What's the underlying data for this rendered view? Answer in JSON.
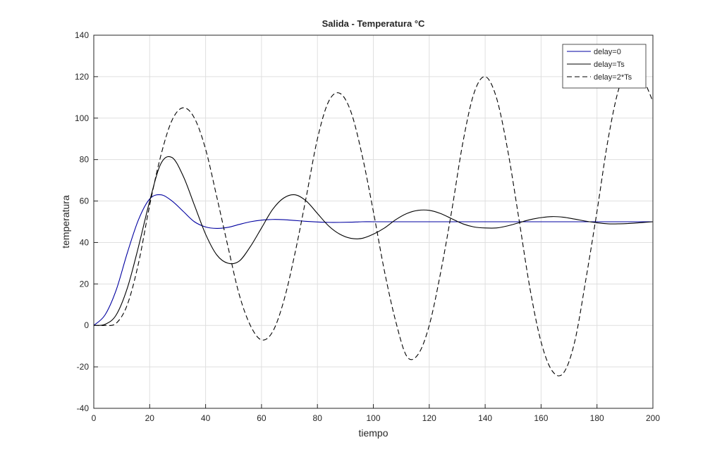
{
  "chart_data": {
    "type": "line",
    "title": "Salida - Temperatura °C",
    "x_label": "tiempo",
    "y_label": "temperatura",
    "x": [
      0,
      4,
      8,
      12,
      16,
      20,
      24,
      28,
      32,
      36,
      40,
      44,
      48,
      52,
      56,
      60,
      64,
      68,
      72,
      76,
      80,
      84,
      88,
      92,
      96,
      100,
      104,
      108,
      112,
      116,
      120,
      124,
      128,
      132,
      136,
      140,
      144,
      148,
      152,
      156,
      160,
      164,
      168,
      172,
      176,
      180,
      184,
      188,
      192,
      196,
      200
    ],
    "series": [
      {
        "name": "delay=0",
        "color": "#0000a0",
        "line_style": "solid",
        "values": [
          0,
          5,
          17,
          35,
          51,
          61,
          63,
          60,
          55,
          50,
          47.5,
          46.8,
          47.3,
          48.7,
          50,
          50.8,
          51.1,
          51,
          50.6,
          50.2,
          49.9,
          49.7,
          49.7,
          49.8,
          50,
          50,
          50,
          50,
          50,
          50,
          50,
          50,
          50,
          50,
          50,
          50,
          50,
          50,
          50,
          50,
          50,
          50,
          50,
          50,
          50,
          50,
          50,
          50,
          50,
          50,
          50
        ]
      },
      {
        "name": "delay=Ts",
        "color": "#000000",
        "line_style": "solid",
        "values": [
          0,
          0.5,
          5,
          18,
          38,
          60,
          78,
          81,
          72,
          58,
          44,
          34,
          30,
          31,
          38,
          47,
          56,
          61.5,
          63,
          60,
          54,
          48,
          44,
          42,
          42,
          44,
          47,
          51,
          54,
          55.5,
          55.5,
          54,
          51.5,
          49,
          47.5,
          47,
          47,
          48,
          49.5,
          51,
          52,
          52.5,
          52.2,
          51.3,
          50.3,
          49.5,
          49,
          49,
          49.2,
          49.6,
          50
        ]
      },
      {
        "name": "delay=2*Ts",
        "color": "#000000",
        "line_style": "dashed",
        "values": [
          0,
          0,
          1,
          10,
          30,
          58,
          82,
          99,
          105,
          100,
          85,
          62,
          38,
          15,
          0,
          -7,
          -3,
          12,
          35,
          62,
          90,
          108,
          112,
          103,
          82,
          55,
          26,
          2,
          -15,
          -14,
          0,
          25,
          55,
          88,
          112,
          120,
          110,
          85,
          52,
          18,
          -8,
          -22,
          -23,
          -8,
          22,
          55,
          90,
          115,
          124,
          120,
          108
        ]
      }
    ],
    "xlim": [
      0,
      200
    ],
    "ylim": [
      -40,
      140
    ],
    "xticks": [
      0,
      20,
      40,
      60,
      80,
      100,
      120,
      140,
      160,
      180,
      200
    ],
    "yticks": [
      -40,
      -20,
      0,
      20,
      40,
      60,
      80,
      100,
      120,
      140
    ],
    "grid": true,
    "legend": "northeast"
  }
}
